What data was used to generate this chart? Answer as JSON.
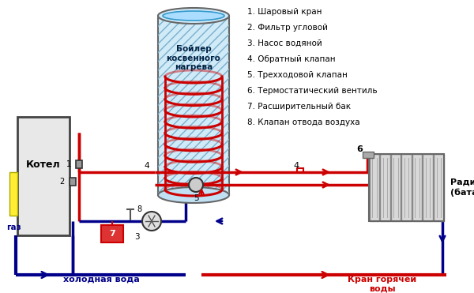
{
  "bg_color": "#ffffff",
  "red": "#cc0000",
  "blue": "#00008b",
  "legend_items": [
    "1. Шаровый кран",
    "2. Фильтр угловой",
    "3. Насос водяной",
    "4. Обратный клапан",
    "5. Трехходовой клапан",
    "6. Термостатический вентиль",
    "7. Расширительный бак",
    "8. Клапан отвода воздуха"
  ],
  "boiler_label": "Бойлер\nкосвенного\nнагрева",
  "kotel_label": "Котел",
  "gaz_label": "газ",
  "cold_water_label": "холодная вода",
  "hot_water_label": "Кран горячей\nводы",
  "radiator_label": "Радиатор\n(батарея)"
}
